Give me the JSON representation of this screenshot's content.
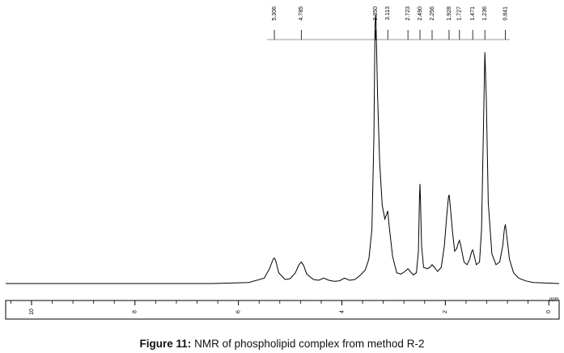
{
  "caption": {
    "label": "Figure 11:",
    "text": "NMR of phospholipid complex from method R-2"
  },
  "chart_data": {
    "type": "line",
    "title": "",
    "xlabel": "ppm",
    "ylabel": "",
    "xlim": [
      10.5,
      -0.2
    ],
    "x_reversed": true,
    "grid": false,
    "legend": "none",
    "x_ticks": [
      10,
      8,
      6,
      4,
      2,
      0
    ],
    "x_tick_labels": [
      "10",
      "8",
      "6",
      "4",
      "2",
      "0"
    ],
    "peak_labels": [
      "5.306",
      "4.785",
      "3.350",
      "3.113",
      "2.723",
      "2.490",
      "2.256",
      "1.928",
      "1.727",
      "1.471",
      "1.236",
      "0.841"
    ],
    "series": [
      {
        "x": [
          10.5,
          6.5,
          5.8,
          5.5,
          5.4,
          5.33,
          5.306,
          5.28,
          5.22,
          5.1,
          5.0,
          4.9,
          4.83,
          4.785,
          4.74,
          4.68,
          4.55,
          4.45,
          4.35,
          4.25,
          4.15,
          4.05,
          3.95,
          3.85,
          3.75,
          3.65,
          3.55,
          3.48,
          3.42,
          3.38,
          3.36,
          3.35,
          3.34,
          3.31,
          3.27,
          3.22,
          3.17,
          3.13,
          3.113,
          3.09,
          3.02,
          2.94,
          2.86,
          2.78,
          2.723,
          2.68,
          2.62,
          2.56,
          2.52,
          2.5,
          2.49,
          2.48,
          2.46,
          2.42,
          2.35,
          2.3,
          2.256,
          2.21,
          2.15,
          2.08,
          2.02,
          1.97,
          1.94,
          1.928,
          1.91,
          1.86,
          1.82,
          1.78,
          1.75,
          1.727,
          1.7,
          1.64,
          1.58,
          1.53,
          1.49,
          1.471,
          1.45,
          1.4,
          1.34,
          1.3,
          1.26,
          1.236,
          1.21,
          1.17,
          1.1,
          1.02,
          0.95,
          0.89,
          0.86,
          0.841,
          0.82,
          0.76,
          0.68,
          0.58,
          0.45,
          0.3,
          -0.2
        ],
        "y": [
          0.0,
          0.0,
          0.004,
          0.02,
          0.055,
          0.09,
          0.095,
          0.085,
          0.04,
          0.015,
          0.018,
          0.04,
          0.07,
          0.08,
          0.068,
          0.035,
          0.015,
          0.012,
          0.02,
          0.012,
          0.008,
          0.01,
          0.02,
          0.012,
          0.015,
          0.03,
          0.05,
          0.09,
          0.2,
          0.55,
          0.95,
          1.0,
          0.97,
          0.7,
          0.45,
          0.29,
          0.24,
          0.26,
          0.27,
          0.22,
          0.1,
          0.04,
          0.035,
          0.045,
          0.055,
          0.045,
          0.032,
          0.04,
          0.12,
          0.32,
          0.37,
          0.3,
          0.14,
          0.06,
          0.055,
          0.06,
          0.07,
          0.06,
          0.045,
          0.06,
          0.14,
          0.26,
          0.32,
          0.33,
          0.3,
          0.19,
          0.12,
          0.13,
          0.15,
          0.16,
          0.14,
          0.08,
          0.07,
          0.09,
          0.12,
          0.125,
          0.11,
          0.07,
          0.08,
          0.2,
          0.62,
          0.86,
          0.7,
          0.3,
          0.11,
          0.07,
          0.08,
          0.14,
          0.2,
          0.22,
          0.19,
          0.09,
          0.04,
          0.02,
          0.01,
          0.004,
          0.0
        ]
      }
    ]
  }
}
